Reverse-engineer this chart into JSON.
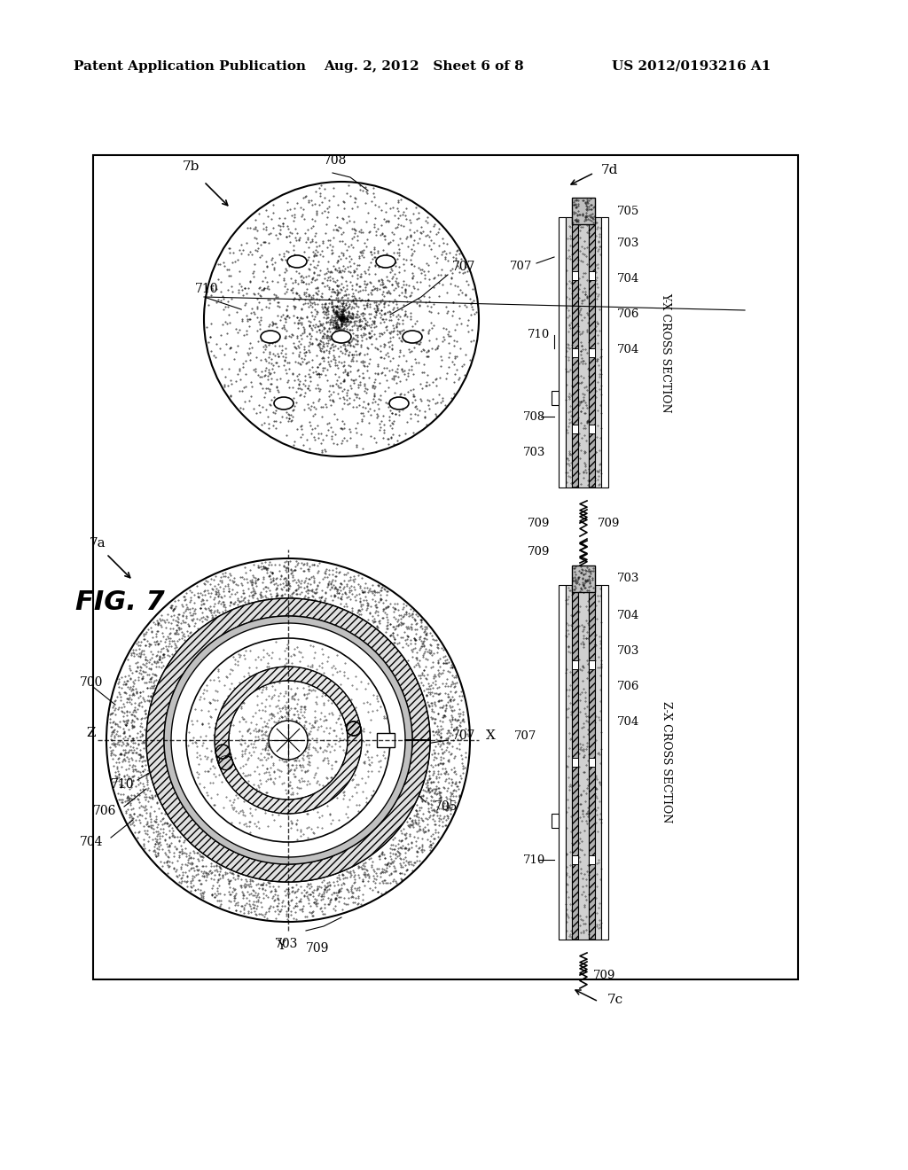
{
  "bg_color": "#ffffff",
  "header_left": "Patent Application Publication",
  "header_mid": "Aug. 2, 2012   Sheet 6 of 8",
  "header_right": "US 2012/0193216 A1",
  "fig_label": "FIG. 7"
}
